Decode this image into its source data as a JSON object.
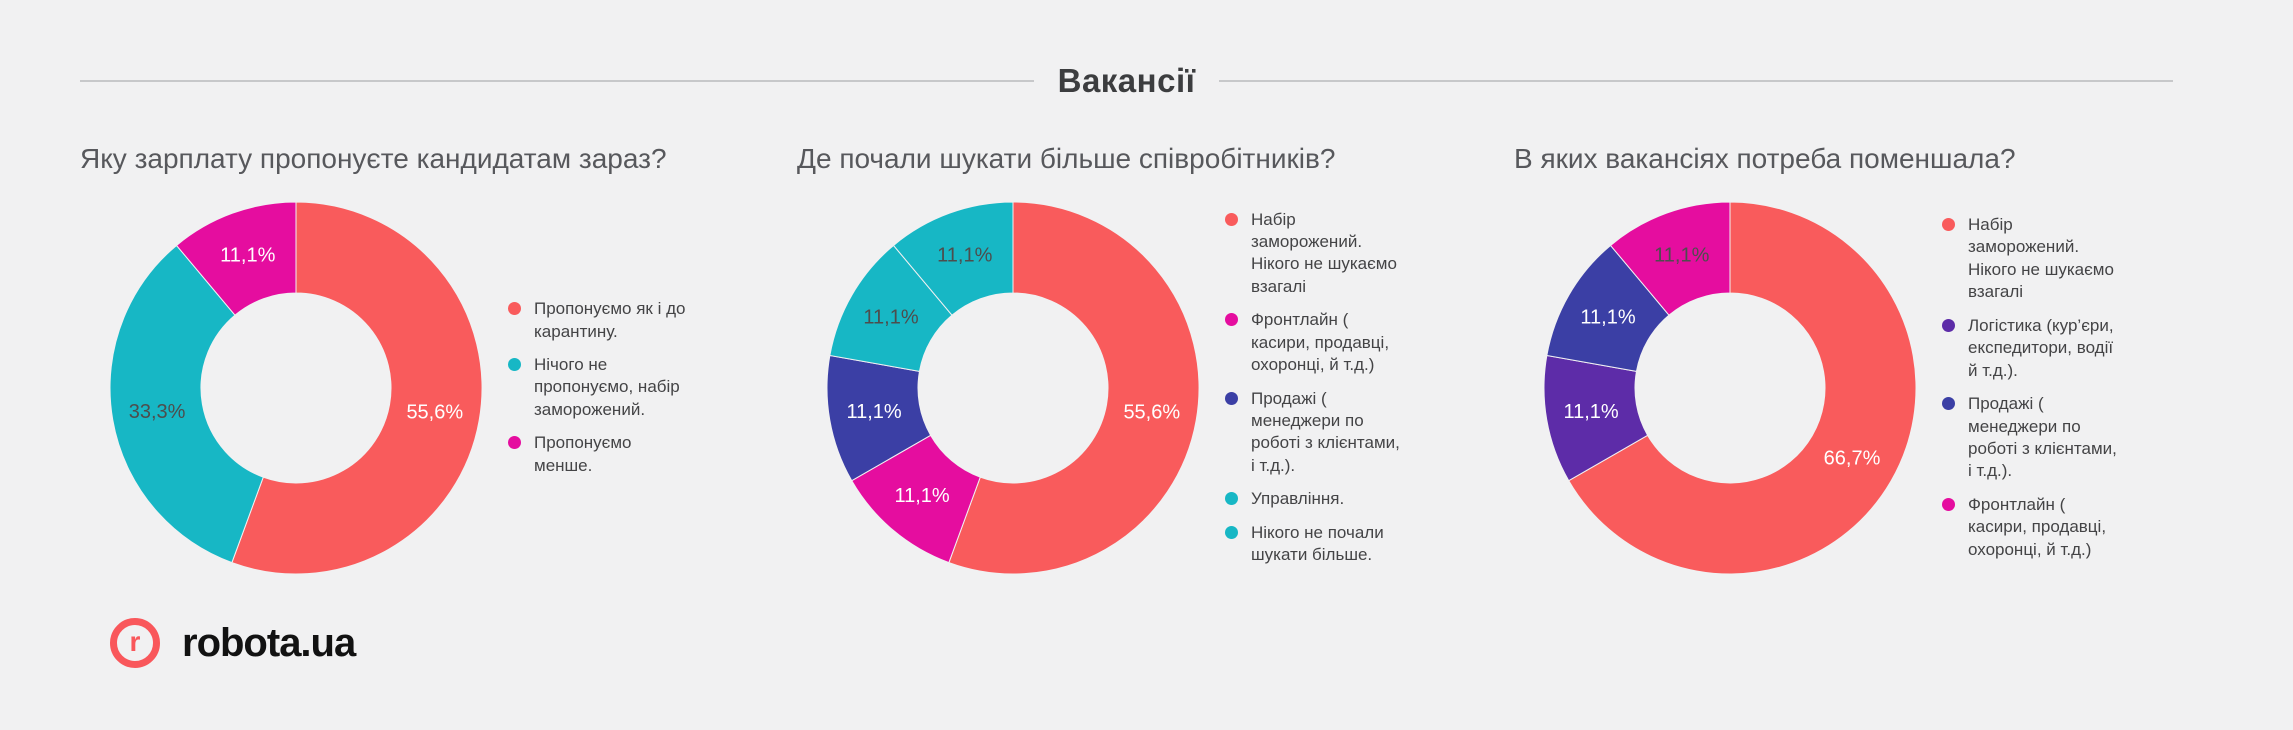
{
  "page": {
    "background": "#f1f1f2"
  },
  "header": {
    "title": "Вакансії"
  },
  "branding": {
    "logo_letter": "r",
    "logo_text": "robota.ua",
    "logo_color": "#f9575b"
  },
  "colors": {
    "background": "#f1f1f2",
    "divider": "#c7c8ca",
    "title_text": "#3c3d3f",
    "chart_title_text": "#57585c",
    "legend_text": "#444446",
    "red": "#f95b5c",
    "teal": "#17b7c5",
    "magenta": "#e50d9f",
    "blue": "#3b3fa5",
    "purple": "#5d2ca8",
    "dark_label": "#4d4d4d",
    "white_label": "#ffffff"
  },
  "chart_data": [
    {
      "type": "pie",
      "donut": true,
      "title": "Яку зарплату пропонуєте кандидатам зараз?",
      "legend_position": "right",
      "slices": [
        {
          "label": "Пропонуємо як і до карантину.",
          "value": 55.6,
          "display": "55,6%",
          "color": "#f95b5c",
          "label_color": "#ffffff"
        },
        {
          "label": "Нічого не пропонуємо, набір заморожений.",
          "value": 33.3,
          "display": "33,3%",
          "color": "#17b7c5",
          "label_color": "#4d4d4d"
        },
        {
          "label": "Пропонуємо менше.",
          "value": 11.1,
          "display": "11,1%",
          "color": "#e50d9f",
          "label_color": "#ffffff"
        }
      ]
    },
    {
      "type": "pie",
      "donut": true,
      "title": "Де почали шукати більше співробітників?",
      "legend_position": "right",
      "slices": [
        {
          "label": "Набір заморожений. Нікого не шукаємо взагалі",
          "value": 55.6,
          "display": "55,6%",
          "color": "#f95b5c",
          "label_color": "#ffffff"
        },
        {
          "label": "Фронтлайн ( касири, продавці, охоронці, й т.д.)",
          "value": 11.1,
          "display": "11,1%",
          "color": "#e50d9f",
          "label_color": "#ffffff"
        },
        {
          "label": "Продажі ( менеджери по роботі з клієнтами, і т.д.).",
          "value": 11.1,
          "display": "11,1%",
          "color": "#3b3fa5",
          "label_color": "#ffffff"
        },
        {
          "label": "Управління.",
          "value": 11.1,
          "display": "11,1%",
          "color": "#17b7c5",
          "label_color": "#4d4d4d"
        },
        {
          "label": "Нікого не почали шукати більше.",
          "value": 11.1,
          "display": "11,1%",
          "color": "#17b7c5",
          "label_color": "#4d4d4d"
        }
      ]
    },
    {
      "type": "pie",
      "donut": true,
      "title": "В яких вакансіях потреба поменшала?",
      "legend_position": "right",
      "slices": [
        {
          "label": "Набір заморожений. Нікого не шукаємо взагалі",
          "value": 66.7,
          "display": "66,7%",
          "color": "#f95b5c",
          "label_color": "#ffffff"
        },
        {
          "label": "Логістика (кур’єри, експедитори, водії й т.д.).",
          "value": 11.1,
          "display": "11,1%",
          "color": "#5d2ca8",
          "label_color": "#ffffff"
        },
        {
          "label": "Продажі ( менеджери по роботі з клієнтами, і т.д.).",
          "value": 11.1,
          "display": "11,1%",
          "color": "#3b3fa5",
          "label_color": "#ffffff"
        },
        {
          "label": "Фронтлайн ( касири, продавці, охоронці, й т.д.)",
          "value": 11.1,
          "display": "11,1%",
          "color": "#e50d9f",
          "label_color": "#4d4d4d"
        }
      ]
    }
  ]
}
